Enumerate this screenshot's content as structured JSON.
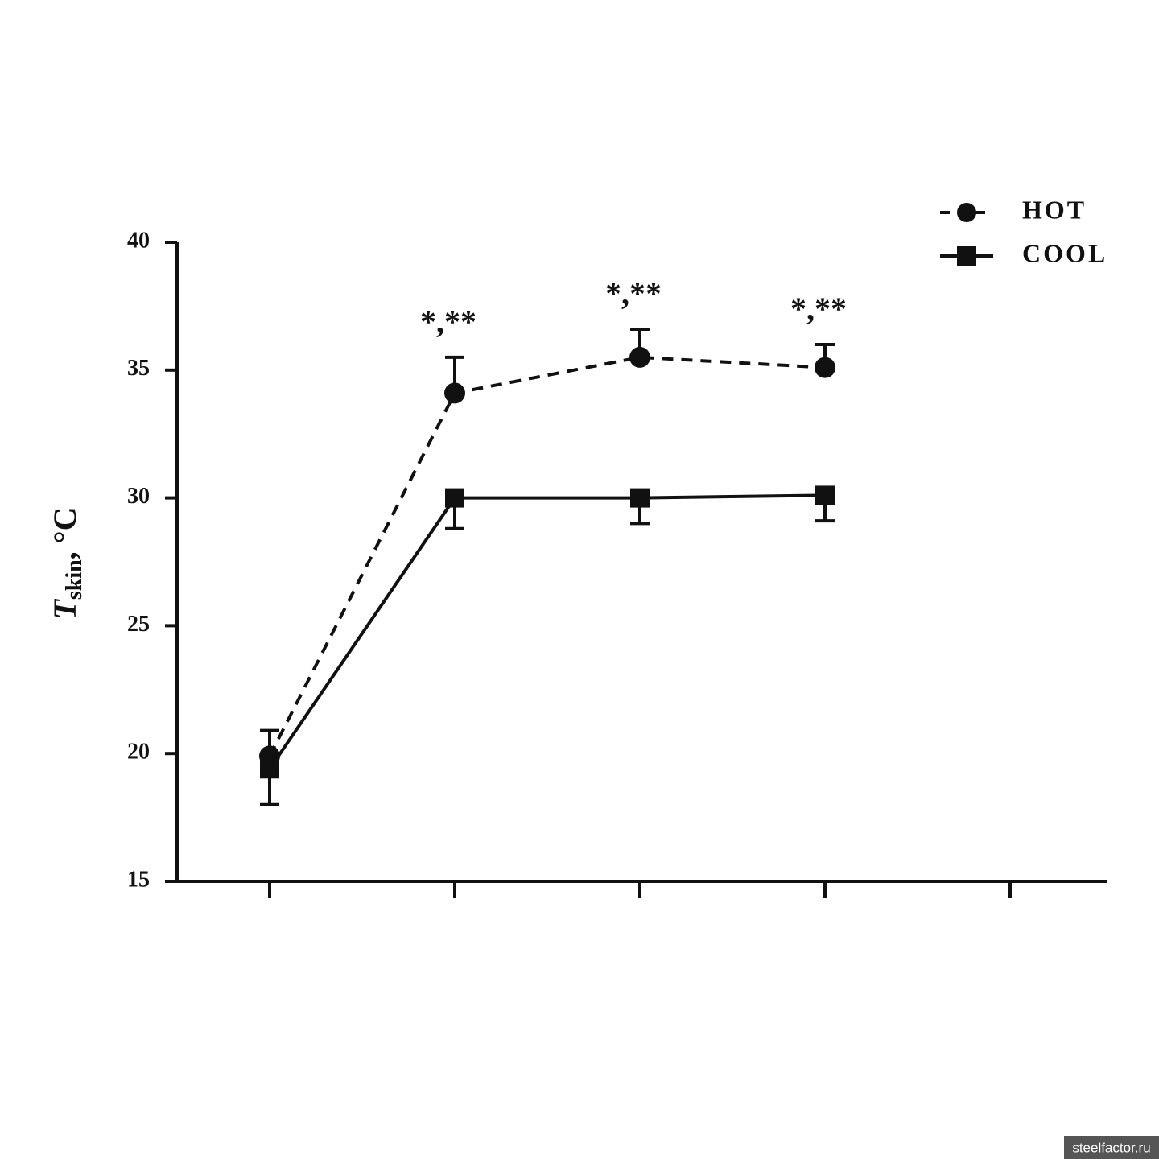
{
  "chart_data": {
    "type": "line",
    "ylabel": {
      "main": "T",
      "sub": "skin",
      "rest": ", °C"
    },
    "categories": [
      null,
      null,
      null,
      null,
      null
    ],
    "series": [
      {
        "name": "HOT",
        "color": "#111111",
        "dash": "dashed",
        "marker": "circle",
        "error_side": "up",
        "values": [
          19.9,
          34.1,
          35.5,
          35.1,
          null
        ],
        "errors": [
          1.0,
          1.4,
          1.1,
          0.9,
          null
        ]
      },
      {
        "name": "COOL",
        "color": "#111111",
        "dash": "solid",
        "marker": "square",
        "error_side": "down",
        "values": [
          19.4,
          30.0,
          30.0,
          30.1,
          null
        ],
        "errors": [
          1.4,
          1.2,
          1.0,
          1.0,
          null
        ]
      }
    ],
    "annotations": [
      null,
      "*,**",
      "*,**",
      "*,**",
      null
    ],
    "ylim": [
      15,
      40
    ],
    "yticks": [
      15,
      20,
      25,
      30,
      35,
      40
    ],
    "grid": false,
    "legend": "upper right",
    "watermark": "steelfactor.ru"
  }
}
